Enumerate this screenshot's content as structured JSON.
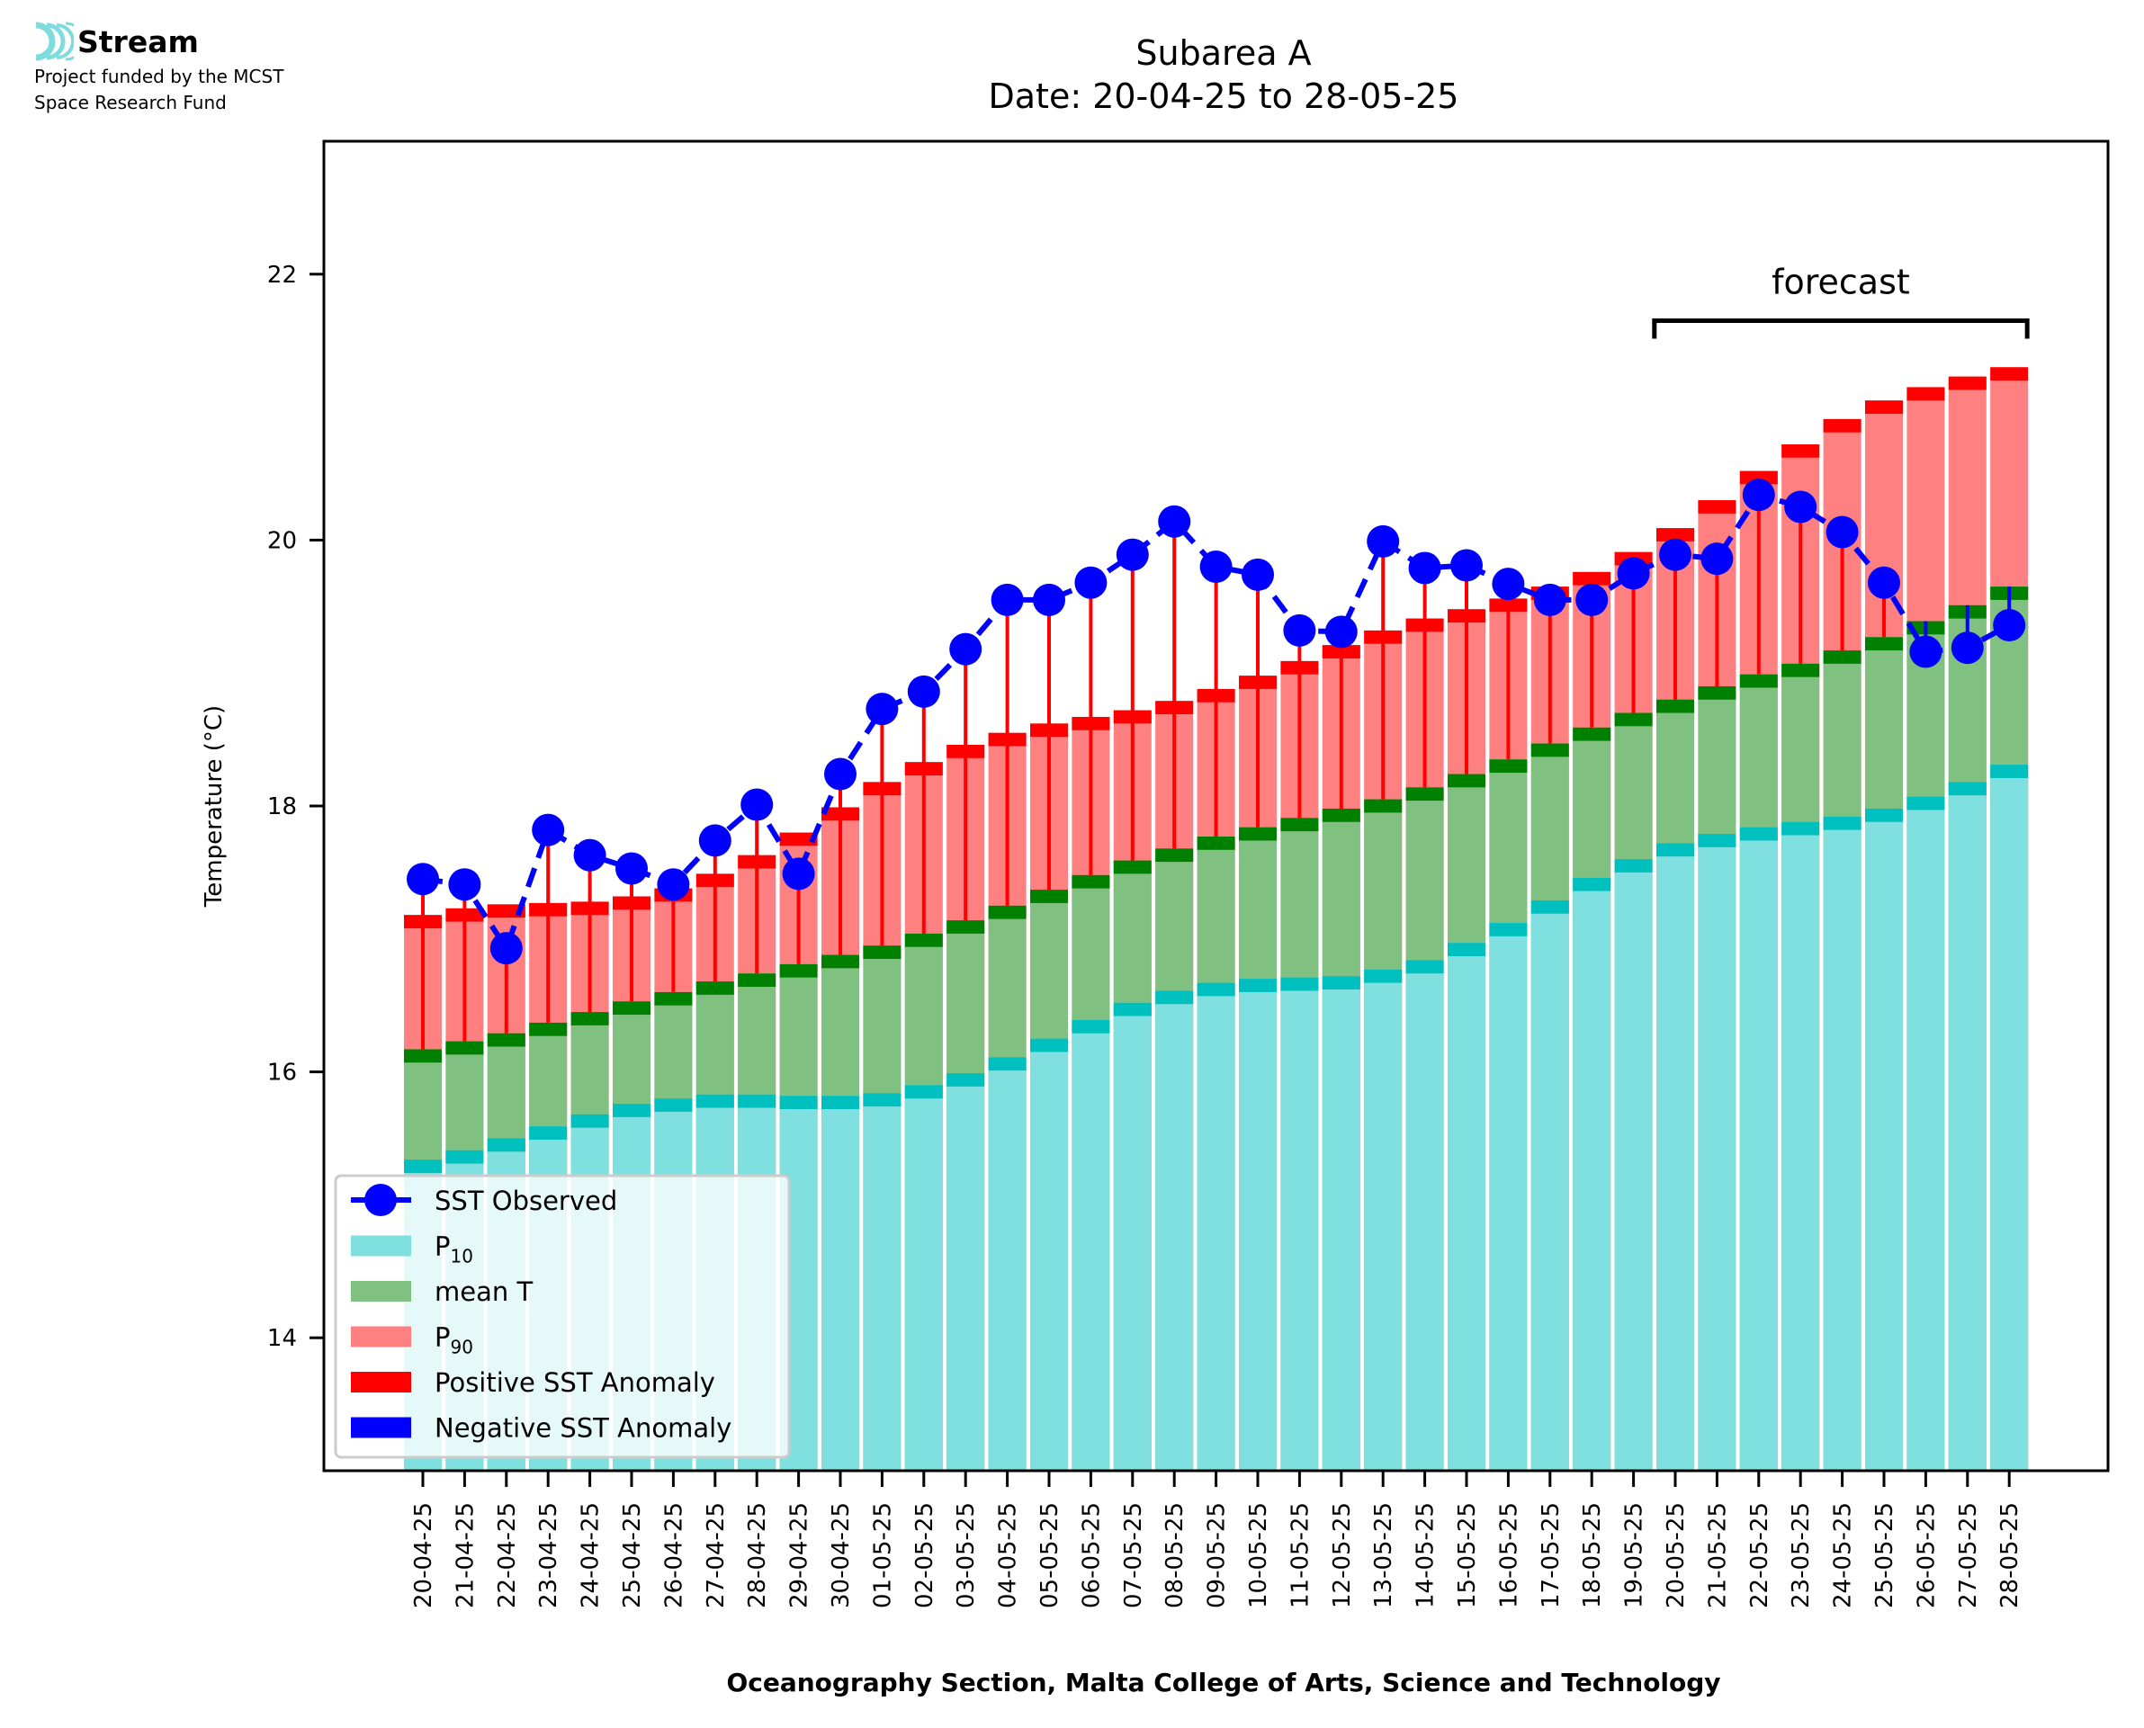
{
  "logo": {
    "name": "Stream",
    "subtitle_line1": "Project funded by the MCST",
    "subtitle_line2": "Space Research Fund"
  },
  "colors": {
    "p10": "#80DFDF",
    "p10_edge": "#00BFBF",
    "mean": "#80C080",
    "mean_edge": "#008000",
    "p90": "#FF8080",
    "p90_edge": "#FF0000",
    "sst": "#0000FF",
    "positive_anomaly": "#FF0000",
    "negative_anomaly": "#0000FF",
    "logo_accent": "#7FDCDC"
  },
  "chart_data": {
    "type": "bar",
    "title": "Subarea A",
    "subtitle": "Date: 20-04-25 to 28-05-25",
    "xlabel": "Oceanography Section, Malta College of Arts, Science and Technology",
    "ylabel": "Temperature (°C)",
    "ylim": [
      13,
      23
    ],
    "yticks": [
      14,
      16,
      18,
      20,
      22
    ],
    "grid": false,
    "legend_position": "lower-left",
    "categories": [
      "20-04-25",
      "21-04-25",
      "22-04-25",
      "23-04-25",
      "24-04-25",
      "25-04-25",
      "26-04-25",
      "27-04-25",
      "28-04-25",
      "29-04-25",
      "30-04-25",
      "01-05-25",
      "02-05-25",
      "03-05-25",
      "04-05-25",
      "05-05-25",
      "06-05-25",
      "07-05-25",
      "08-05-25",
      "09-05-25",
      "10-05-25",
      "11-05-25",
      "12-05-25",
      "13-05-25",
      "14-05-25",
      "15-05-25",
      "16-05-25",
      "17-05-25",
      "18-05-25",
      "19-05-25",
      "20-05-25",
      "21-05-25",
      "22-05-25",
      "23-05-25",
      "24-05-25",
      "25-05-25",
      "26-05-25",
      "27-05-25",
      "28-05-25"
    ],
    "series": [
      {
        "name": "P10",
        "kind": "bar",
        "values": [
          15.34,
          15.41,
          15.5,
          15.59,
          15.68,
          15.76,
          15.8,
          15.83,
          15.83,
          15.82,
          15.82,
          15.84,
          15.9,
          15.99,
          16.11,
          16.25,
          16.39,
          16.52,
          16.61,
          16.67,
          16.7,
          16.71,
          16.72,
          16.77,
          16.84,
          16.97,
          17.12,
          17.29,
          17.46,
          17.6,
          17.72,
          17.79,
          17.84,
          17.88,
          17.92,
          17.98,
          18.07,
          18.18,
          18.31
        ]
      },
      {
        "name": "mean T",
        "kind": "bar",
        "values": [
          16.17,
          16.23,
          16.29,
          16.37,
          16.45,
          16.53,
          16.6,
          16.68,
          16.74,
          16.81,
          16.88,
          16.95,
          17.04,
          17.14,
          17.25,
          17.37,
          17.48,
          17.59,
          17.68,
          17.77,
          17.84,
          17.91,
          17.98,
          18.05,
          18.14,
          18.24,
          18.35,
          18.47,
          18.59,
          18.7,
          18.8,
          18.9,
          18.99,
          19.07,
          19.17,
          19.27,
          19.39,
          19.51,
          19.65
        ]
      },
      {
        "name": "P90",
        "kind": "bar",
        "values": [
          17.18,
          17.23,
          17.26,
          17.27,
          17.28,
          17.32,
          17.38,
          17.49,
          17.63,
          17.8,
          17.99,
          18.18,
          18.33,
          18.46,
          18.55,
          18.62,
          18.67,
          18.72,
          18.79,
          18.88,
          18.98,
          19.09,
          19.21,
          19.32,
          19.41,
          19.48,
          19.56,
          19.65,
          19.76,
          19.91,
          20.09,
          20.3,
          20.52,
          20.72,
          20.91,
          21.05,
          21.15,
          21.23,
          21.3
        ]
      },
      {
        "name": "SST Observed",
        "kind": "line",
        "values": [
          17.45,
          17.41,
          16.93,
          17.82,
          17.63,
          17.53,
          17.41,
          17.74,
          18.01,
          17.49,
          18.24,
          18.73,
          18.86,
          19.18,
          19.55,
          19.55,
          19.68,
          19.89,
          20.14,
          19.8,
          19.74,
          19.32,
          19.31,
          19.99,
          19.79,
          19.81,
          19.67,
          19.55,
          19.55,
          19.75,
          19.89,
          19.86,
          20.34,
          20.25,
          20.06,
          19.68,
          19.16,
          19.19,
          19.36
        ]
      }
    ],
    "legend": [
      {
        "label": "SST Observed",
        "kind": "line-marker",
        "color_key": "sst"
      },
      {
        "label": "P",
        "sub": "10",
        "kind": "patch",
        "color_key": "p10"
      },
      {
        "label": "mean T",
        "sub": "",
        "kind": "patch",
        "color_key": "mean"
      },
      {
        "label": "P",
        "sub": "90",
        "kind": "patch",
        "color_key": "p90"
      },
      {
        "label": "Positive SST Anomaly",
        "sub": "",
        "kind": "patch",
        "color_key": "positive_anomaly"
      },
      {
        "label": "Negative SST Anomaly",
        "sub": "",
        "kind": "patch",
        "color_key": "negative_anomaly"
      }
    ],
    "annotation": {
      "text": "forecast",
      "bracket_from_index": 29.5,
      "bracket_to_index": 38.43,
      "bracket_value": 21.65
    }
  }
}
